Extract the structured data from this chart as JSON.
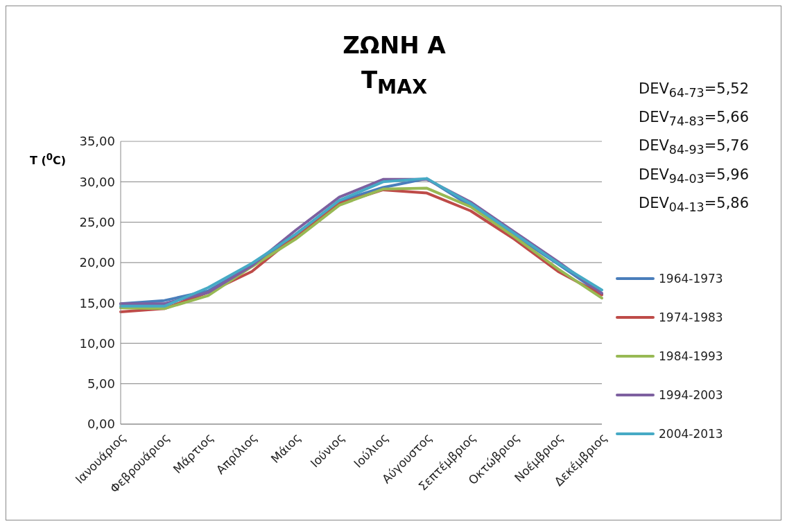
{
  "chart_data": {
    "type": "line",
    "title": "ΖΩΝΗ Α",
    "subtitle": "T$_{MAX}$",
    "ylabel": "T ($^{0}$C)",
    "categories": [
      "Ιανουάριος",
      "Φεβρουάριος",
      "Μάρτιος",
      "Απρίλιος",
      "Μάιος",
      "Ιούνιος",
      "Ιούλιος",
      "Αύγουστος",
      "Σεπτέμβριος",
      "Οκτώβριος",
      "Νοέμβριος",
      "Δεκέμβριος"
    ],
    "series": [
      {
        "name": "1964-1973",
        "color": "#4a7ebb",
        "values": [
          14.9,
          15.3,
          16.5,
          19.6,
          23.5,
          27.6,
          29.3,
          30.4,
          27.0,
          23.4,
          19.8,
          16.1
        ]
      },
      {
        "name": "1974-1983",
        "color": "#be4b48",
        "values": [
          13.9,
          14.3,
          16.3,
          18.9,
          23.3,
          27.3,
          29.0,
          28.6,
          26.4,
          22.9,
          18.9,
          16.0
        ]
      },
      {
        "name": "1984-1993",
        "color": "#98b954",
        "values": [
          14.4,
          14.3,
          15.9,
          19.5,
          22.9,
          27.1,
          29.1,
          29.2,
          26.9,
          23.2,
          19.2,
          15.6
        ]
      },
      {
        "name": "1994-2003",
        "color": "#7d60a0",
        "values": [
          14.9,
          14.9,
          16.3,
          19.6,
          24.0,
          28.1,
          30.3,
          30.3,
          27.5,
          23.8,
          20.1,
          16.2
        ]
      },
      {
        "name": "2004-2013",
        "color": "#46aac5",
        "values": [
          14.6,
          14.6,
          16.9,
          19.9,
          23.5,
          27.7,
          30.0,
          30.4,
          27.3,
          23.6,
          19.9,
          16.6
        ]
      }
    ],
    "ylim": [
      0,
      35
    ],
    "yticks": [
      {
        "value": 0,
        "label": "0,00"
      },
      {
        "value": 5,
        "label": "5,00"
      },
      {
        "value": 10,
        "label": "10,00"
      },
      {
        "value": 15,
        "label": "15,00"
      },
      {
        "value": 20,
        "label": "20,00"
      },
      {
        "value": 25,
        "label": "25,00"
      },
      {
        "value": 30,
        "label": "30,00"
      },
      {
        "value": 35,
        "label": "35,00"
      }
    ],
    "grid": "y",
    "legend": "right",
    "marker": "none",
    "line_style": "solid",
    "annotations": [
      "DEV$_{64-73}$=5,52",
      "DEV$_{74-83}$=5,66",
      "DEV$_{84-93}$=5,76",
      "DEV$_{94-03}$=5,96",
      "DEV$_{04-13}$=5,86"
    ]
  }
}
